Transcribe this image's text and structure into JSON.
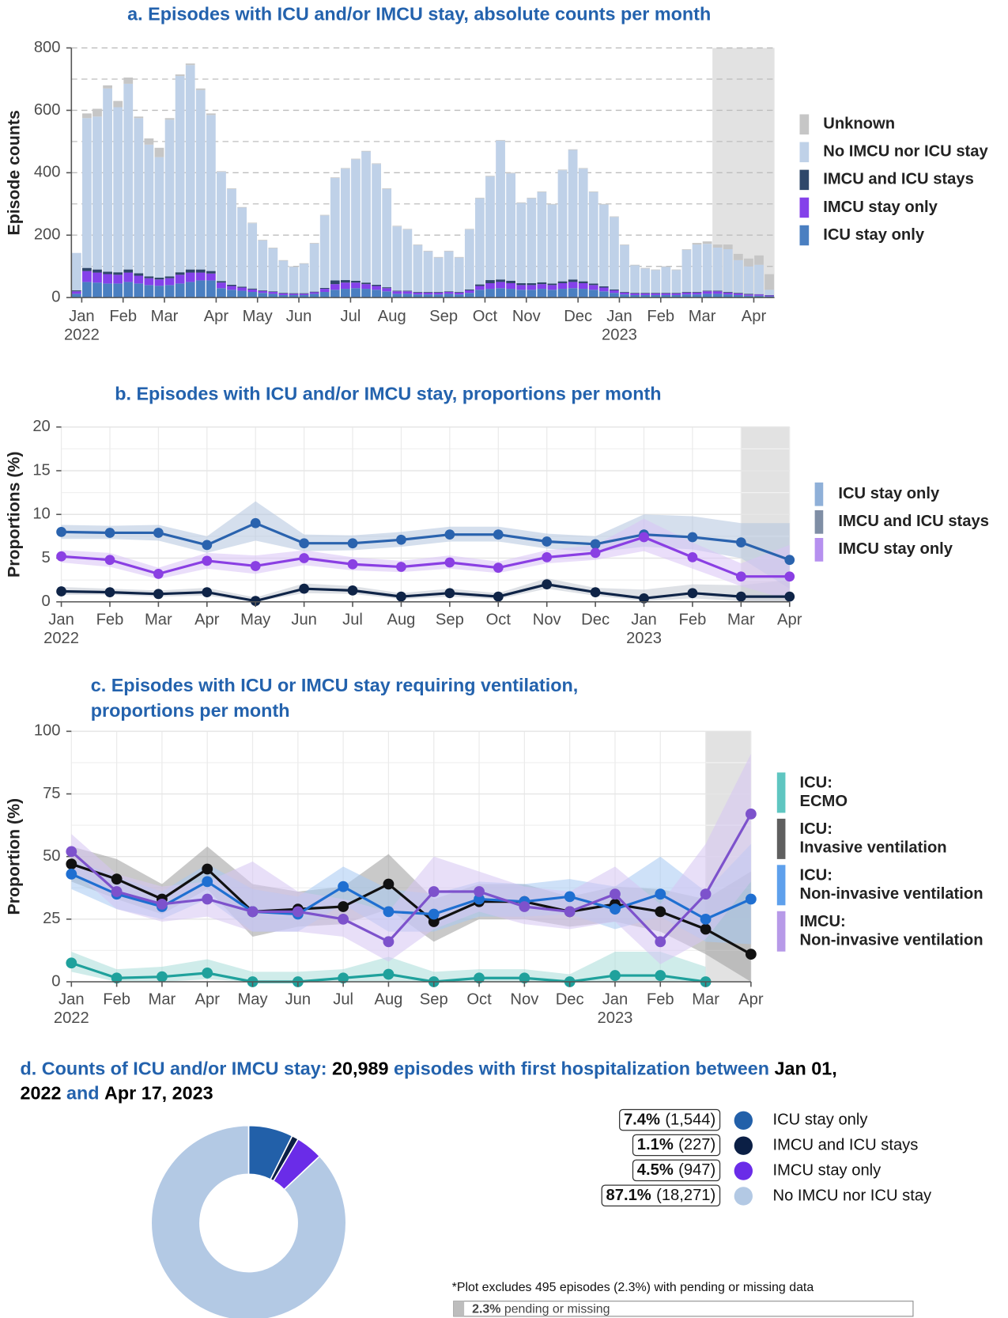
{
  "chart_data": [
    {
      "type": "bar",
      "stacked": true,
      "title": "a. Episodes with ICU and/or IMCU stay, absolute counts per month",
      "y_label": "Episode counts",
      "categories": [
        null,
        "Jan",
        null,
        null,
        null,
        "Feb",
        null,
        null,
        null,
        "Mar",
        null,
        null,
        null,
        null,
        "Apr",
        null,
        null,
        null,
        "May",
        null,
        null,
        null,
        "Jun",
        null,
        null,
        null,
        null,
        "Jul",
        null,
        null,
        null,
        "Aug",
        null,
        null,
        null,
        null,
        "Sep",
        null,
        null,
        null,
        "Oct",
        null,
        null,
        null,
        "Nov",
        null,
        null,
        null,
        null,
        "Dec",
        null,
        null,
        null,
        "Jan",
        null,
        null,
        null,
        "Feb",
        null,
        null,
        null,
        "Mar",
        null,
        null,
        null,
        null,
        "Apr",
        null
      ],
      "year_labels": [
        {
          "category": 1,
          "label": "2022"
        },
        {
          "category": 53,
          "label": "2023"
        }
      ],
      "ylim": [
        0,
        800
      ],
      "yticks": [
        0,
        200,
        400,
        600,
        800
      ],
      "minor_yticks": [
        100,
        300,
        500,
        700
      ],
      "grid": true,
      "grid_style": "dashed",
      "shaded_from": 62,
      "legend": "right",
      "series": [
        {
          "name": "ICU stay only",
          "color": "#4a7fc1",
          "values": [
            12,
            50,
            48,
            45,
            45,
            50,
            45,
            40,
            38,
            40,
            45,
            50,
            55,
            55,
            30,
            25,
            22,
            18,
            15,
            12,
            8,
            8,
            8,
            12,
            18,
            25,
            28,
            30,
            28,
            25,
            20,
            12,
            12,
            10,
            10,
            10,
            12,
            10,
            15,
            25,
            28,
            30,
            28,
            25,
            25,
            28,
            25,
            28,
            30,
            28,
            25,
            20,
            15,
            10,
            8,
            8,
            8,
            8,
            8,
            10,
            10,
            12,
            12,
            10,
            8,
            6,
            6,
            4
          ]
        },
        {
          "name": "IMCU stay only",
          "color": "#8441ea",
          "values": [
            8,
            35,
            32,
            30,
            28,
            30,
            25,
            22,
            20,
            22,
            28,
            30,
            25,
            22,
            18,
            12,
            10,
            8,
            6,
            6,
            5,
            4,
            4,
            5,
            10,
            18,
            20,
            18,
            15,
            12,
            10,
            8,
            8,
            6,
            6,
            6,
            6,
            6,
            8,
            12,
            18,
            20,
            18,
            15,
            15,
            15,
            15,
            18,
            20,
            18,
            15,
            12,
            8,
            6,
            5,
            5,
            5,
            5,
            5,
            6,
            6,
            8,
            8,
            6,
            5,
            4,
            4,
            3
          ]
        },
        {
          "name": "IMCU and ICU stays",
          "color": "#2f476a",
          "values": [
            3,
            10,
            10,
            8,
            8,
            10,
            8,
            6,
            6,
            6,
            8,
            10,
            10,
            8,
            5,
            4,
            3,
            3,
            2,
            2,
            2,
            2,
            2,
            2,
            3,
            12,
            8,
            6,
            5,
            4,
            3,
            2,
            2,
            2,
            2,
            2,
            2,
            2,
            3,
            5,
            10,
            8,
            8,
            6,
            6,
            6,
            5,
            6,
            8,
            6,
            5,
            4,
            3,
            2,
            2,
            2,
            2,
            2,
            2,
            2,
            2,
            2,
            2,
            2,
            2,
            2,
            1,
            1
          ]
        },
        {
          "name": "No IMCU nor ICU stay",
          "color": "#bfd1e8",
          "values": [
            120,
            480,
            490,
            587,
            529,
            595,
            497,
            422,
            386,
            502,
            629,
            655,
            575,
            500,
            350,
            307,
            253,
            209,
            160,
            138,
            103,
            84,
            94,
            154,
            232,
            328,
            357,
            389,
            420,
            387,
            315,
            206,
            196,
            150,
            130,
            110,
            128,
            110,
            192,
            276,
            332,
            445,
            344,
            257,
            272,
            289,
            253,
            356,
            415,
            361,
            293,
            262,
            232,
            150,
            88,
            78,
            73,
            83,
            73,
            135,
            152,
            150,
            138,
            137,
            105,
            88,
            94,
            17
          ]
        },
        {
          "name": "Unknown",
          "color": "#c6c6c6",
          "values": [
            0,
            15,
            25,
            10,
            20,
            20,
            5,
            20,
            30,
            5,
            5,
            5,
            5,
            5,
            2,
            2,
            2,
            2,
            2,
            2,
            2,
            2,
            2,
            2,
            2,
            2,
            2,
            2,
            2,
            2,
            2,
            2,
            2,
            2,
            2,
            2,
            2,
            2,
            2,
            2,
            2,
            2,
            2,
            2,
            2,
            2,
            2,
            2,
            2,
            2,
            2,
            2,
            2,
            2,
            2,
            2,
            2,
            2,
            2,
            2,
            5,
            8,
            10,
            15,
            20,
            25,
            30,
            50
          ]
        }
      ]
    },
    {
      "type": "line",
      "title": "b. Episodes with ICU and/or IMCU stay, proportions per month",
      "y_label": "Proportions (%)",
      "categories": [
        "Jan",
        "Feb",
        "Mar",
        "Apr",
        "May",
        "Jun",
        "Jul",
        "Aug",
        "Sep",
        "Oct",
        "Nov",
        "Dec",
        "Jan",
        "Feb",
        "Mar",
        "Apr"
      ],
      "year_labels": [
        {
          "category": 0,
          "label": "2022"
        },
        {
          "category": 12,
          "label": "2023"
        }
      ],
      "ylim": [
        0,
        20
      ],
      "yticks": [
        0,
        5,
        10,
        15,
        20
      ],
      "minor_yticks": [
        2.5,
        7.5,
        12.5,
        17.5
      ],
      "grid": true,
      "grid_style": "solid",
      "shaded_from": 14,
      "legend": "right",
      "series": [
        {
          "name": "ICU stay only",
          "color": "#2a63ae",
          "legend_color": "#8fb0d8",
          "band_color": "#b3c5df",
          "values": [
            8.0,
            7.9,
            7.9,
            6.5,
            9.0,
            6.7,
            6.7,
            7.1,
            7.7,
            7.7,
            6.9,
            6.6,
            7.7,
            7.4,
            6.8,
            4.8
          ],
          "lower": [
            7.2,
            7.2,
            7.0,
            5.6,
            7.0,
            5.8,
            5.9,
            6.3,
            6.9,
            6.9,
            6.1,
            5.7,
            6.3,
            6.0,
            5.0,
            1.5
          ],
          "upper": [
            8.8,
            8.7,
            8.8,
            7.5,
            11.5,
            7.7,
            7.6,
            8.0,
            8.6,
            8.6,
            7.8,
            7.5,
            10.0,
            9.8,
            9.0,
            9.0
          ]
        },
        {
          "name": "IMCU and ICU stays",
          "color": "#0f2447",
          "legend_color": "#7f8ea5",
          "band_color": "#c2c8d2",
          "values": [
            1.2,
            1.1,
            0.9,
            1.1,
            0.1,
            1.5,
            1.3,
            0.6,
            1.0,
            0.6,
            2.0,
            1.1,
            0.4,
            1.0,
            0.6,
            0.6
          ],
          "lower": [
            0.8,
            0.8,
            0.6,
            0.7,
            0,
            1.0,
            0.9,
            0.3,
            0.6,
            0.3,
            1.5,
            0.7,
            0.1,
            0.4,
            0.1,
            0
          ],
          "upper": [
            1.7,
            1.5,
            1.3,
            1.6,
            0.5,
            2.1,
            1.8,
            1.0,
            1.5,
            1.0,
            2.7,
            1.6,
            1.4,
            2.0,
            1.9,
            2.5
          ]
        },
        {
          "name": "IMCU stay only",
          "color": "#8a3fe3",
          "legend_color": "#b690ef",
          "band_color": "#d8c2f5",
          "values": [
            5.2,
            4.8,
            3.2,
            4.7,
            4.1,
            5.0,
            4.3,
            4.0,
            4.5,
            3.9,
            5.1,
            5.6,
            7.4,
            5.1,
            2.9,
            2.9
          ],
          "lower": [
            4.5,
            4.0,
            2.6,
            3.8,
            3.2,
            4.2,
            3.6,
            3.4,
            3.8,
            3.3,
            4.4,
            4.8,
            5.8,
            3.8,
            1.8,
            0.2
          ],
          "upper": [
            5.9,
            5.6,
            3.9,
            5.6,
            5.3,
            5.9,
            5.1,
            4.7,
            5.3,
            4.6,
            5.9,
            6.5,
            9.5,
            6.8,
            4.4,
            6.5
          ]
        }
      ]
    },
    {
      "type": "line",
      "title": [
        "c. Episodes with ICU or IMCU stay requiring ventilation,",
        "proportions per month"
      ],
      "y_label": "Proportion (%)",
      "categories": [
        "Jan",
        "Feb",
        "Mar",
        "Apr",
        "May",
        "Jun",
        "Jul",
        "Aug",
        "Sep",
        "Oct",
        "Nov",
        "Dec",
        "Jan",
        "Feb",
        "Mar",
        "Apr"
      ],
      "year_labels": [
        {
          "category": 0,
          "label": "2022"
        },
        {
          "category": 12,
          "label": "2023"
        }
      ],
      "ylim": [
        0,
        100
      ],
      "yticks": [
        0,
        25,
        50,
        75,
        100
      ],
      "minor_yticks": [
        12.5,
        37.5,
        62.5,
        87.5
      ],
      "grid": true,
      "grid_style": "solid",
      "shaded_from": 14,
      "legend": "right",
      "series": [
        {
          "name": [
            "ICU:",
            "ECMO"
          ],
          "color": "#1fa19c",
          "legend_color": "#5fc6c1",
          "band_color": "#a8dcd9",
          "values": [
            7.5,
            1.5,
            2,
            3.5,
            0,
            0,
            1.5,
            3,
            0,
            1.5,
            1.5,
            0,
            2.5,
            2.5,
            0,
            null
          ],
          "lower": [
            4,
            0,
            0,
            1,
            0,
            0,
            0,
            0,
            0,
            0,
            0,
            0,
            0,
            0,
            0,
            null
          ],
          "upper": [
            12,
            5,
            6,
            9,
            4,
            4,
            5,
            10,
            4,
            5,
            5,
            3,
            12,
            12,
            6,
            null
          ]
        },
        {
          "name": [
            "ICU:",
            "Invasive ventilation"
          ],
          "color": "#111111",
          "legend_color": "#5f5f5f",
          "band_color": "#9c9c9c",
          "values": [
            47,
            41,
            33,
            45,
            28,
            29,
            30,
            39,
            24,
            32,
            32,
            28,
            31,
            28,
            21,
            11
          ],
          "lower": [
            40,
            33,
            27,
            37,
            18,
            22,
            23,
            29,
            16,
            25,
            25,
            22,
            24,
            20,
            11,
            0
          ],
          "upper": [
            54,
            49,
            39,
            54,
            39,
            36,
            38,
            51,
            33,
            39,
            39,
            34,
            38,
            37,
            33,
            44
          ]
        },
        {
          "name": [
            "ICU:",
            "Non-invasive ventilation"
          ],
          "color": "#1f6fd1",
          "legend_color": "#5ea0ec",
          "band_color": "#a6c8f2",
          "values": [
            43,
            35,
            30,
            40,
            28,
            27,
            38,
            28,
            27,
            33,
            32,
            34,
            29,
            35,
            25,
            33
          ],
          "lower": [
            37,
            29,
            25,
            33,
            20,
            20,
            31,
            20,
            20,
            26,
            26,
            27,
            21,
            26,
            16,
            15
          ],
          "upper": [
            49,
            42,
            36,
            47,
            37,
            34,
            46,
            37,
            35,
            40,
            39,
            41,
            38,
            50,
            36,
            55
          ]
        },
        {
          "name": [
            "IMCU:",
            "Non-invasive ventilation"
          ],
          "color": "#7d52cc",
          "legend_color": "#b79ae8",
          "band_color": "#d5c4f2",
          "values": [
            52,
            36,
            31,
            33,
            28,
            28,
            25,
            16,
            36,
            36,
            30,
            28,
            35,
            16,
            35,
            67
          ],
          "lower": [
            45,
            29,
            24,
            26,
            20,
            20,
            18,
            8,
            21,
            28,
            23,
            21,
            24,
            7,
            17,
            40
          ],
          "upper": [
            59,
            43,
            38,
            40,
            48,
            36,
            33,
            28,
            50,
            44,
            38,
            36,
            46,
            31,
            55,
            91
          ]
        }
      ]
    },
    {
      "type": "pie",
      "donut": true,
      "title_lines": [
        [
          {
            "text": "d. Counts of ICU and/or IMCU stay: ",
            "emphasis": false
          },
          {
            "text": "20,989",
            "emphasis": true
          },
          {
            "text": " episodes with first hospitalization between ",
            "emphasis": false
          },
          {
            "text": "Jan 01,",
            "emphasis": true
          }
        ],
        [
          {
            "text": "2022",
            "emphasis": true
          },
          {
            "text": " and ",
            "emphasis": false
          },
          {
            "text": "Apr 17, 2023",
            "emphasis": true
          }
        ]
      ],
      "categories": [
        "ICU stay only",
        "IMCU and ICU stays",
        "IMCU stay only",
        "No IMCU nor ICU stay"
      ],
      "values": [
        7.4,
        1.1,
        4.5,
        87.1
      ],
      "value_labels": [
        "7.4%",
        "1.1%",
        "4.5%",
        "87.1%"
      ],
      "counts": [
        1544,
        227,
        947,
        18271
      ],
      "count_labels": [
        "(1,544)",
        "(227)",
        "(947)",
        "(18,271)"
      ],
      "colors": [
        "#2260a9",
        "#0b1f45",
        "#6a2ce8",
        "#b3c9e4"
      ],
      "note": "*Plot excludes 495 episodes (2.3%) with pending or missing data",
      "pending": {
        "value": 2.3,
        "label": "2.3%",
        "text": " pending or missing",
        "lim": [
          0,
          100
        ]
      }
    }
  ]
}
